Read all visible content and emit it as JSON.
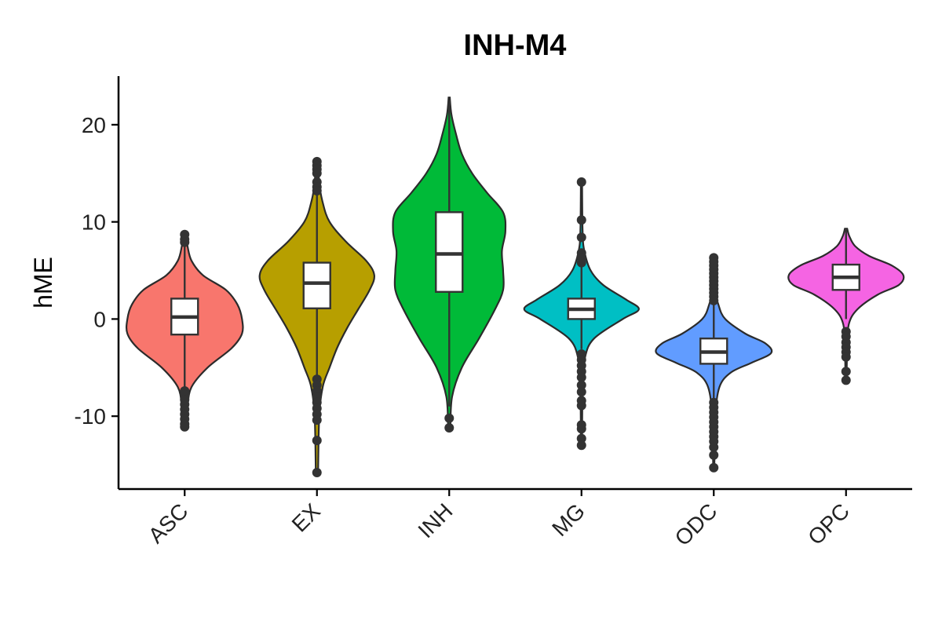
{
  "chart_data": {
    "type": "violin",
    "title": "INH-M4",
    "xlabel": "",
    "ylabel": "hME",
    "ylim": [
      -17.5,
      25
    ],
    "yticks": [
      -10,
      0,
      10,
      20
    ],
    "grid": false,
    "legend": "none",
    "categories": [
      "ASC",
      "EX",
      "INH",
      "MG",
      "ODC",
      "OPC"
    ],
    "colors": [
      "#F8766D",
      "#B79F00",
      "#00BA38",
      "#00BFC4",
      "#619CFF",
      "#F564E3"
    ],
    "series": [
      {
        "category": "ASC",
        "box": {
          "whisker_low": -7.1,
          "q1": -1.6,
          "median": 0.2,
          "q3": 2.1,
          "whisker_high": 7.6
        },
        "range": [
          -11.2,
          8.8
        ],
        "outliers": [
          8.7,
          8.2,
          7.9,
          -7.4,
          -7.8,
          -8.3,
          -8.8,
          -9.3,
          -9.8,
          -10.3,
          -10.8,
          -11.1
        ],
        "density": [
          [
            -11.2,
            0.02
          ],
          [
            -9,
            0.05
          ],
          [
            -7,
            0.12
          ],
          [
            -5,
            0.4
          ],
          [
            -3,
            0.82
          ],
          [
            -1.5,
            1.0
          ],
          [
            0,
            1.0
          ],
          [
            1.5,
            0.92
          ],
          [
            3,
            0.72
          ],
          [
            4.5,
            0.32
          ],
          [
            6,
            0.12
          ],
          [
            7.5,
            0.05
          ],
          [
            8.8,
            0.02
          ]
        ]
      },
      {
        "category": "EX",
        "box": {
          "whisker_low": -5.8,
          "q1": 1.1,
          "median": 3.7,
          "q3": 5.8,
          "whisker_high": 12.8
        },
        "range": [
          -15.8,
          16.2
        ],
        "outliers": [
          16.2,
          15.8,
          15.4,
          15.0,
          14.1,
          13.6,
          13.2,
          -6.2,
          -6.8,
          -7.4,
          -8.0,
          -8.6,
          -9.2,
          -9.8,
          -10.4,
          -12.5,
          -15.8
        ],
        "density": [
          [
            -15.8,
            0.02
          ],
          [
            -10,
            0.04
          ],
          [
            -7,
            0.1
          ],
          [
            -5,
            0.22
          ],
          [
            -3,
            0.35
          ],
          [
            -1,
            0.52
          ],
          [
            1,
            0.72
          ],
          [
            3,
            0.92
          ],
          [
            4.5,
            1.0
          ],
          [
            6,
            0.86
          ],
          [
            8,
            0.5
          ],
          [
            10,
            0.22
          ],
          [
            12,
            0.1
          ],
          [
            14,
            0.04
          ],
          [
            16.2,
            0.02
          ]
        ]
      },
      {
        "category": "INH",
        "box": {
          "whisker_low": -9.0,
          "q1": 2.8,
          "median": 6.7,
          "q3": 11.0,
          "whisker_high": 22.5
        },
        "range": [
          -11.2,
          22.8
        ],
        "outliers": [
          -10.2,
          -11.2
        ],
        "density": [
          [
            -11.2,
            0.02
          ],
          [
            -8,
            0.05
          ],
          [
            -5,
            0.22
          ],
          [
            -2,
            0.52
          ],
          [
            1,
            0.8
          ],
          [
            3,
            0.94
          ],
          [
            5,
            0.94
          ],
          [
            7,
            0.92
          ],
          [
            9,
            0.98
          ],
          [
            11,
            0.94
          ],
          [
            13,
            0.66
          ],
          [
            15,
            0.4
          ],
          [
            17,
            0.22
          ],
          [
            19,
            0.12
          ],
          [
            21,
            0.04
          ],
          [
            22.8,
            0.01
          ]
        ]
      },
      {
        "category": "MG",
        "box": {
          "whisker_low": -3.1,
          "q1": 0.0,
          "median": 1.0,
          "q3": 2.1,
          "whisker_high": 5.4
        },
        "range": [
          -13.0,
          14.1
        ],
        "outliers": [
          14.1,
          10.2,
          8.4,
          6.8,
          6.3,
          5.8,
          -3.6,
          -4.2,
          -4.8,
          -5.4,
          -6.0,
          -6.8,
          -7.5,
          -8.4,
          -8.9,
          -10.9,
          -11.3,
          -12.3,
          -13.0
        ],
        "density": [
          [
            -13,
            0.01
          ],
          [
            -7,
            0.02
          ],
          [
            -4,
            0.06
          ],
          [
            -2,
            0.22
          ],
          [
            0,
            0.72
          ],
          [
            1,
            1.0
          ],
          [
            2,
            0.78
          ],
          [
            3.5,
            0.38
          ],
          [
            5,
            0.16
          ],
          [
            7,
            0.05
          ],
          [
            9,
            0.02
          ],
          [
            14.1,
            0.01
          ]
        ]
      },
      {
        "category": "ODC",
        "box": {
          "whisker_low": -8.2,
          "q1": -4.6,
          "median": -3.4,
          "q3": -2.0,
          "whisker_high": 1.5
        },
        "range": [
          -15.3,
          6.3
        ],
        "outliers": [
          6.3,
          5.9,
          5.5,
          5.1,
          4.7,
          4.3,
          3.9,
          3.5,
          3.1,
          2.7,
          2.3,
          1.9,
          -8.6,
          -9.1,
          -9.6,
          -10.1,
          -10.6,
          -11.1,
          -11.6,
          -12.1,
          -12.6,
          -13.2,
          -14.0,
          -15.3
        ],
        "density": [
          [
            -15.3,
            0.01
          ],
          [
            -10,
            0.03
          ],
          [
            -7,
            0.1
          ],
          [
            -5.5,
            0.3
          ],
          [
            -4.5,
            0.66
          ],
          [
            -3.5,
            1.0
          ],
          [
            -2.5,
            0.9
          ],
          [
            -1.5,
            0.55
          ],
          [
            0,
            0.2
          ],
          [
            1.5,
            0.08
          ],
          [
            3,
            0.03
          ],
          [
            6.3,
            0.01
          ]
        ]
      },
      {
        "category": "OPC",
        "box": {
          "whisker_low": 0.0,
          "q1": 3.0,
          "median": 4.3,
          "q3": 5.6,
          "whisker_high": 9.2
        },
        "range": [
          -6.3,
          9.3
        ],
        "outliers": [
          -1.3,
          -1.8,
          -2.4,
          -2.9,
          -3.4,
          -3.9,
          -5.4,
          -6.3
        ],
        "density": [
          [
            -6.3,
            0.01
          ],
          [
            -3,
            0.02
          ],
          [
            -0.5,
            0.05
          ],
          [
            1,
            0.2
          ],
          [
            2.5,
            0.55
          ],
          [
            3.5,
            0.92
          ],
          [
            4.5,
            1.0
          ],
          [
            5.5,
            0.8
          ],
          [
            6.5,
            0.4
          ],
          [
            7.5,
            0.16
          ],
          [
            8.5,
            0.06
          ],
          [
            9.3,
            0.02
          ]
        ]
      }
    ]
  }
}
